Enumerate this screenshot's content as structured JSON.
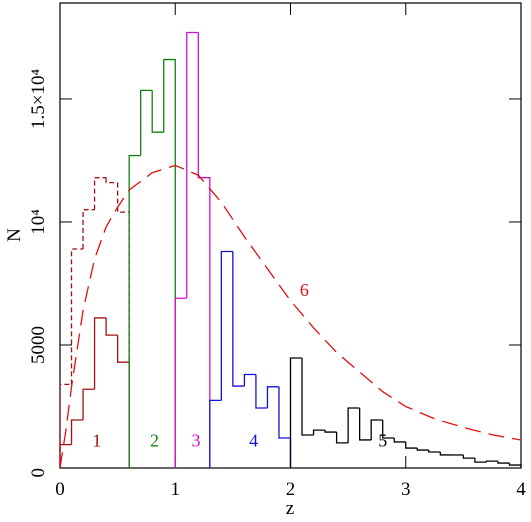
{
  "chart_data": {
    "type": "histogram",
    "xlabel": "z",
    "ylabel": "N",
    "xlim": [
      0,
      4
    ],
    "ylim": [
      0,
      18900
    ],
    "xticks": [
      0,
      1,
      2,
      3,
      4
    ],
    "yticks": [
      0,
      5000,
      {
        "value": 10000,
        "label": "10⁴"
      },
      {
        "value": 15000,
        "label": "1.5×10⁴"
      }
    ],
    "series": [
      {
        "name": "1",
        "color": "#a01010",
        "bins": [
          0,
          0.1,
          0.2,
          0.3,
          0.4,
          0.5,
          0.6
        ],
        "values": [
          950,
          1950,
          3200,
          6100,
          5400,
          4300
        ]
      },
      {
        "color": "#a01010",
        "dashed": true,
        "bins": [
          0,
          0.1,
          0.2,
          0.3,
          0.4,
          0.5,
          0.6
        ],
        "values": [
          3400,
          8900,
          10500,
          11800,
          11600,
          10400
        ]
      },
      {
        "name": "2",
        "color": "#108010",
        "bins": [
          0.6,
          0.7,
          0.8,
          0.9,
          1.0
        ],
        "values": [
          12700,
          15350,
          13650,
          16600
        ]
      },
      {
        "name": "3",
        "color": "#d010d0",
        "bins": [
          1.0,
          1.1,
          1.2,
          1.3
        ],
        "values": [
          6900,
          17700,
          11800
        ]
      },
      {
        "name": "4",
        "color": "#1010e0",
        "bins": [
          1.3,
          1.4,
          1.5,
          1.6,
          1.7,
          1.8,
          1.9,
          2.0
        ],
        "values": [
          2750,
          8800,
          3330,
          3800,
          2440,
          3300,
          1220
        ]
      },
      {
        "name": "5",
        "color": "#000000",
        "bins": [
          2.0,
          2.1,
          2.2,
          2.3,
          2.4,
          2.5,
          2.6,
          2.7,
          2.8,
          2.9,
          3.0,
          3.1,
          3.2,
          3.3,
          3.4,
          3.5,
          3.6,
          3.7,
          3.8,
          3.9,
          4.0
        ],
        "values": [
          4470,
          1340,
          1540,
          1460,
          1020,
          2440,
          1140,
          1950,
          1220,
          1060,
          810,
          730,
          650,
          530,
          530,
          400,
          240,
          280,
          200,
          120
        ]
      },
      {
        "name": "6",
        "type": "line",
        "color": "#e01010",
        "dashed": true,
        "x": [
          0,
          0.05,
          0.1,
          0.2,
          0.3,
          0.4,
          0.5,
          0.6,
          0.8,
          1.0,
          1.2,
          1.4,
          1.6,
          1.8,
          2.0,
          2.2,
          2.4,
          2.6,
          2.8,
          3.0,
          3.25,
          3.5,
          3.75,
          4.0
        ],
        "values": [
          0,
          1500,
          3300,
          6400,
          8500,
          9800,
          10600,
          11300,
          12000,
          12300,
          11900,
          10800,
          9400,
          8100,
          6800,
          5700,
          4700,
          3900,
          3100,
          2500,
          2000,
          1650,
          1350,
          1140
        ]
      }
    ]
  }
}
